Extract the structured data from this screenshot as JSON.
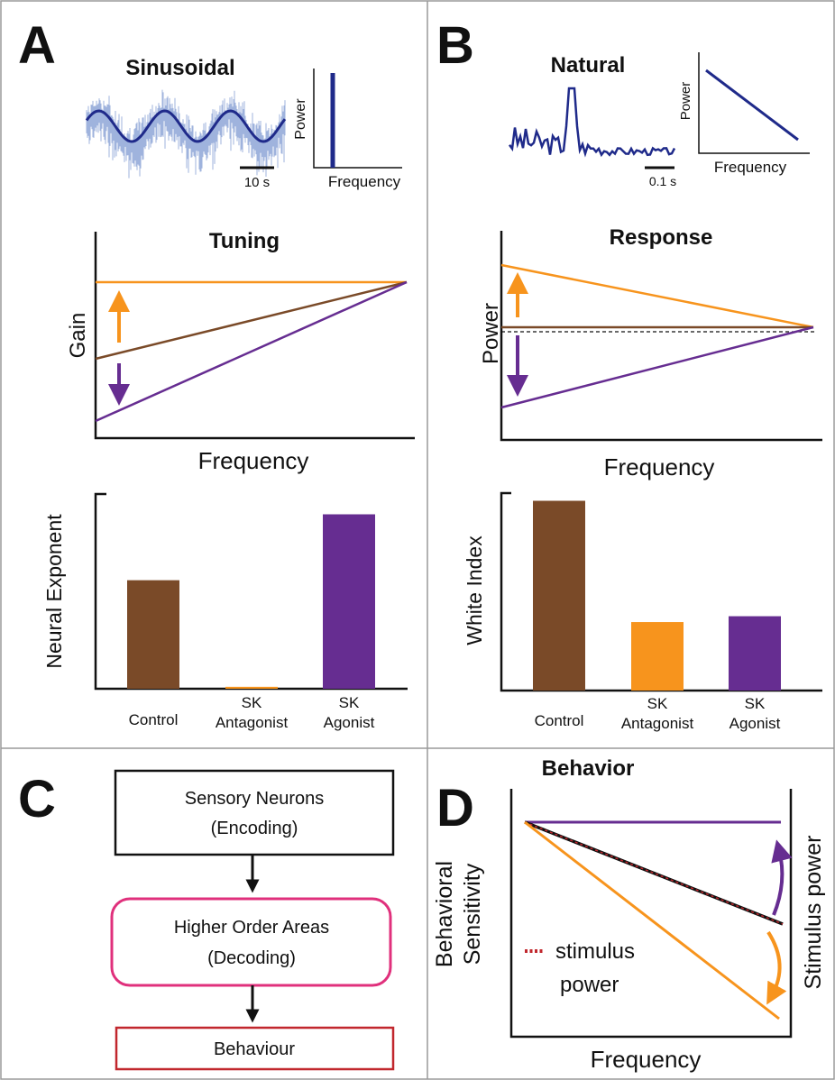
{
  "panels": {
    "A": {
      "letter": "A",
      "stimulus_title": "Sinusoidal",
      "scale_bar": "10 s",
      "spectrum_ylabel": "Power",
      "spectrum_xlabel": "Frequency",
      "tuning_title": "Tuning",
      "tuning_ylabel": "Gain",
      "tuning_xlabel": "Frequency",
      "bar_ylabel": "Neural Exponent",
      "bars": [
        {
          "label_line1": "Control",
          "label_line2": "",
          "value": 0.56,
          "color": "#7a4a28"
        },
        {
          "label_line1": "SK",
          "label_line2": "Antagonist",
          "value": 0.01,
          "color": "#f7941d"
        },
        {
          "label_line1": "SK",
          "label_line2": "Agonist",
          "value": 0.9,
          "color": "#662d91"
        }
      ]
    },
    "B": {
      "letter": "B",
      "stimulus_title": "Natural",
      "scale_bar": "0.1 s",
      "spectrum_ylabel": "Power",
      "spectrum_xlabel": "Frequency",
      "response_title": "Response",
      "response_ylabel": "Power",
      "response_xlabel": "Frequency",
      "bar_ylabel": "White Index",
      "bars": [
        {
          "label_line1": "Control",
          "label_line2": "",
          "value": 0.97,
          "color": "#7a4a28"
        },
        {
          "label_line1": "SK",
          "label_line2": "Antagonist",
          "value": 0.35,
          "color": "#f7941d"
        },
        {
          "label_line1": "SK",
          "label_line2": "Agonist",
          "value": 0.38,
          "color": "#662d91"
        }
      ]
    },
    "C": {
      "letter": "C",
      "box1_line1": "Sensory Neurons",
      "box1_line2": "(Encoding)",
      "box2_line1": "Higher Order Areas",
      "box2_line2": "(Decoding)",
      "box3": "Behaviour"
    },
    "D": {
      "letter": "D",
      "title": "Behavior",
      "ylabel_line1": "Behavioral",
      "ylabel_line2": "Sensitivity",
      "xlabel": "Frequency",
      "right_label": "Stimulus power",
      "legend_line1": "stimulus",
      "legend_line2": "power"
    }
  },
  "colors": {
    "brown": "#7a4a28",
    "orange": "#f7941d",
    "purple": "#662d91",
    "navy": "#1f2a8a",
    "light_blue": "#9fb3dd",
    "pink": "#e0307c",
    "red": "#c1272d"
  }
}
